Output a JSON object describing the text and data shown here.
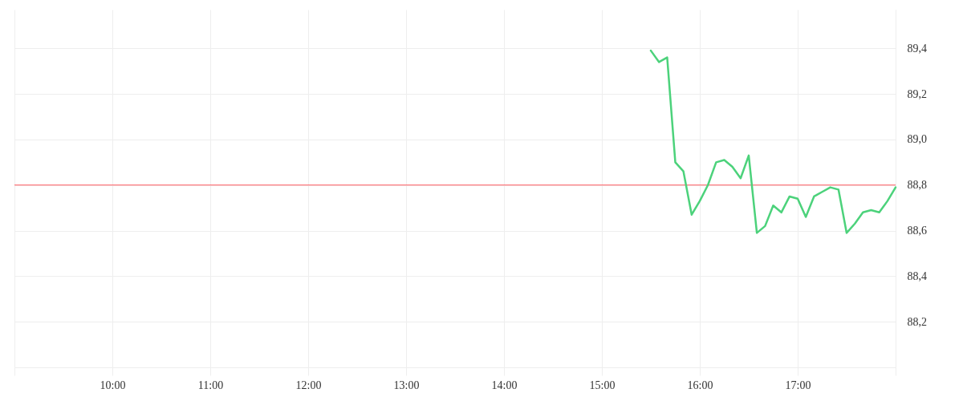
{
  "chart_data": {
    "type": "line",
    "x": [
      15.5,
      15.583,
      15.667,
      15.75,
      15.833,
      15.917,
      16.0,
      16.083,
      16.167,
      16.25,
      16.333,
      16.417,
      16.5,
      16.583,
      16.667,
      16.75,
      16.833,
      16.917,
      17.0,
      17.083,
      17.167,
      17.25,
      17.333,
      17.417,
      17.5,
      17.583,
      17.667,
      17.75,
      17.833,
      17.917,
      18.0
    ],
    "values": [
      89.39,
      89.34,
      89.36,
      88.9,
      88.86,
      88.67,
      88.73,
      88.8,
      88.9,
      88.91,
      88.88,
      88.83,
      88.93,
      88.59,
      88.62,
      88.71,
      88.68,
      88.75,
      88.74,
      88.66,
      88.75,
      88.77,
      88.79,
      88.78,
      88.59,
      88.63,
      88.68,
      88.69,
      88.68,
      88.73,
      88.79
    ],
    "color": "#4cd27b",
    "line_style": "solid",
    "xlim": [
      9,
      18
    ],
    "xticks": [
      {
        "value": 9,
        "label": null
      },
      {
        "value": 10,
        "label": "10:00"
      },
      {
        "value": 11,
        "label": "11:00"
      },
      {
        "value": 12,
        "label": "12:00"
      },
      {
        "value": 13,
        "label": "13:00"
      },
      {
        "value": 14,
        "label": "14:00"
      },
      {
        "value": 15,
        "label": "15:00"
      },
      {
        "value": 16,
        "label": "16:00"
      },
      {
        "value": 17,
        "label": "17:00"
      },
      {
        "value": 18,
        "label": null
      }
    ],
    "ylim": [
      88.0,
      89.57
    ],
    "yticks": [
      {
        "value": 88.2,
        "label": "88,2"
      },
      {
        "value": 88.4,
        "label": "88,4"
      },
      {
        "value": 88.6,
        "label": "88,6"
      },
      {
        "value": 88.8,
        "label": "88,8"
      },
      {
        "value": 89.0,
        "label": "89,0"
      },
      {
        "value": 89.2,
        "label": "89,2"
      },
      {
        "value": 89.4,
        "label": "89,4"
      }
    ],
    "grid": true,
    "ref_lines": [
      {
        "axis": "y",
        "value": 88.8,
        "color": "#ff5a5f"
      }
    ]
  }
}
